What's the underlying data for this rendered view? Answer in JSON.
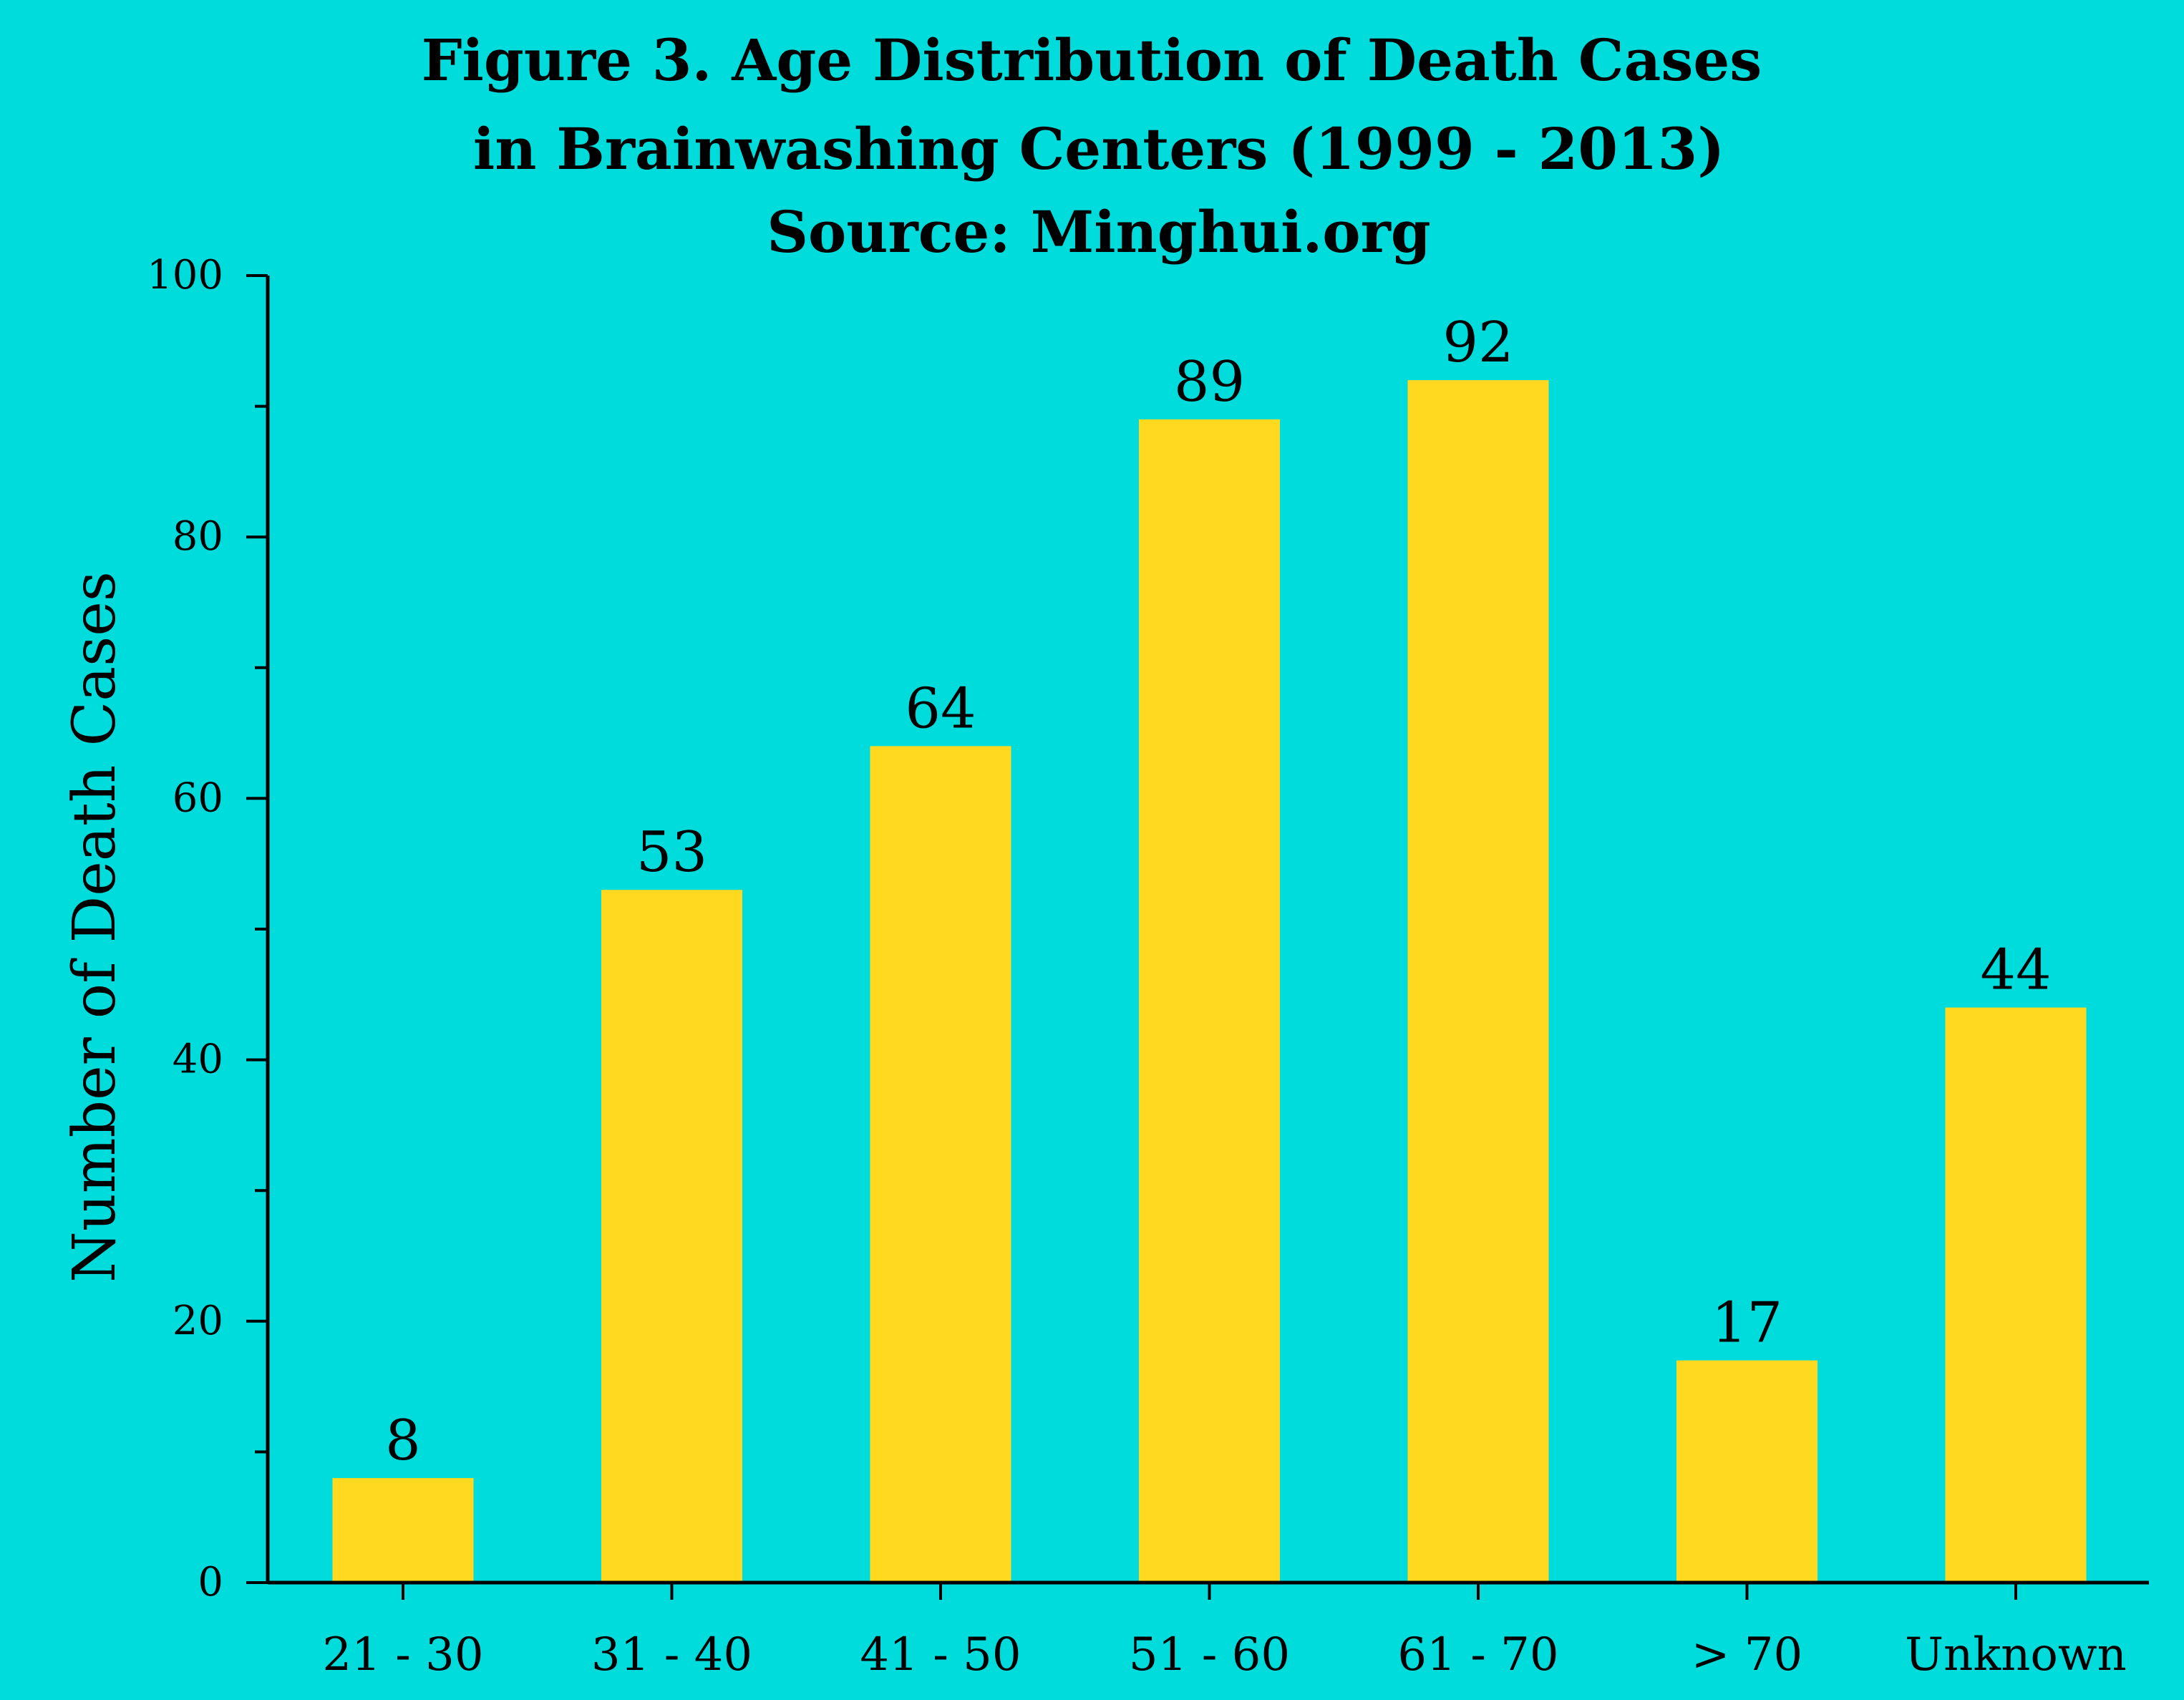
{
  "chart_data": {
    "type": "bar",
    "title_lines": [
      "Figure 3. Age Distribution of Death Cases",
      "in Brainwashing Centers  (1999 - 2013)",
      "Source: Minghui.org"
    ],
    "xlabel": "",
    "ylabel": "Number of Death Cases",
    "categories": [
      "21 - 30",
      "31 - 40",
      "41 - 50",
      "51 - 60",
      "61 - 70",
      "> 70",
      "Unknown"
    ],
    "values": [
      8,
      53,
      64,
      89,
      92,
      17,
      44
    ],
    "data_labels": [
      "8",
      "53",
      "64",
      "89",
      "92",
      "17",
      "44"
    ],
    "ylim": [
      0,
      100
    ],
    "y_ticks": [
      0,
      20,
      40,
      60,
      80,
      100
    ],
    "y_tick_labels": [
      "0",
      "20",
      "40",
      "60",
      "80",
      "100"
    ],
    "y_minor_ticks": [
      10,
      30,
      50,
      70,
      90
    ],
    "grid": false,
    "legend": "none",
    "colors": {
      "background": "#00dcdc",
      "bar": "#ffd820",
      "axis": "#000000",
      "text": "#000000"
    }
  }
}
